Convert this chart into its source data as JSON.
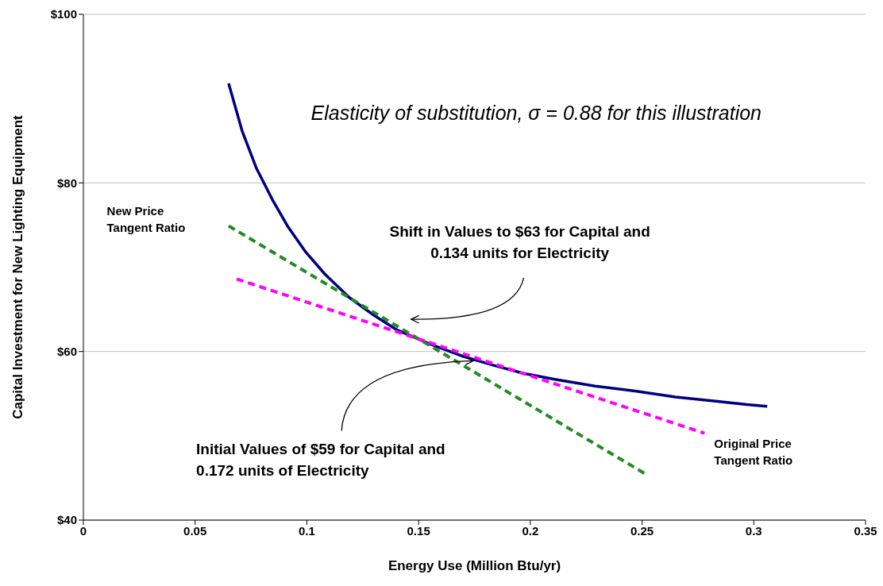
{
  "chart_data": {
    "type": "line",
    "xlabel": "Energy Use (Million Btu/yr)",
    "ylabel": "Capital Investment for New Lighting Equipment",
    "xlim": [
      0,
      0.35
    ],
    "xticks": [
      0,
      0.05,
      0.1,
      0.15,
      0.2,
      0.25,
      0.3,
      0.35
    ],
    "ylim": [
      40,
      100
    ],
    "yticks": [
      {
        "value": 40,
        "label": "$40"
      },
      {
        "value": 60,
        "label": "$60"
      },
      {
        "value": 80,
        "label": "$80"
      },
      {
        "value": 100,
        "label": "$100"
      }
    ],
    "grid": "y",
    "marker": "none",
    "series": [
      {
        "color": "#000080",
        "line_style": "solid",
        "x": [
          0.065,
          0.071,
          0.0775,
          0.0846,
          0.0913,
          0.0995,
          0.108,
          0.119,
          0.13,
          0.14,
          0.155,
          0.169,
          0.183,
          0.197,
          0.211,
          0.229,
          0.247,
          0.265,
          0.283,
          0.297,
          0.306
        ],
        "values": [
          91.8,
          86.2,
          81.7,
          78,
          74.9,
          71.8,
          69.2,
          66.4,
          64.3,
          62.6,
          60.9,
          59.5,
          58.4,
          57.4,
          56.7,
          55.9,
          55.3,
          54.6,
          54.1,
          53.7,
          53.5
        ]
      },
      {
        "color": "#228b22",
        "line_style": "dashed",
        "x": [
          0.065,
          0.252
        ],
        "values": [
          74.9,
          45.4
        ]
      },
      {
        "color": "#ff00ff",
        "line_style": "dashed",
        "x": [
          0.0686,
          0.278
        ],
        "values": [
          68.6,
          50.3
        ]
      }
    ],
    "annotations": [
      "Elasticity of substitution, σ = 0.88 for this illustration",
      "New Price Tangent Ratio",
      "Shift in Values to $63 for Capital and 0.134 units for Electricity",
      {
        "text": "Initial Values of $59 for Capital and 0.172 units of Electricity",
        "x": 0.1745,
        "y": 58.9
      },
      {
        "text": "Original Price Tangent Ratio",
        "x": 0.278,
        "y": 50.3
      }
    ]
  }
}
